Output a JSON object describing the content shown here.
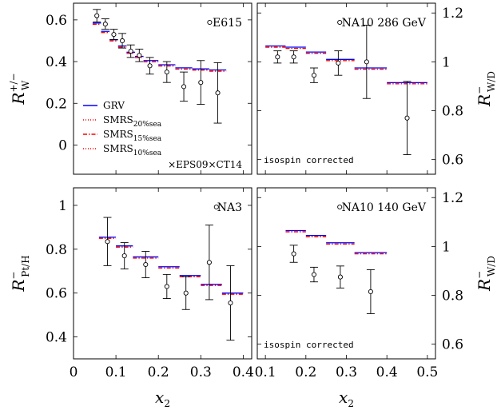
{
  "chart_data": [
    {
      "type": "scatter",
      "panel": "top-left",
      "ylabel": "R_W^{+/-}",
      "ylabel_main": "R",
      "ylabel_sub": "W",
      "ylabel_sup": "+/−",
      "ylabel_side": "left",
      "xlim": [
        0,
        0.42
      ],
      "ylim": [
        -0.14,
        0.68
      ],
      "xticks": [
        0,
        0.1,
        0.2,
        0.3,
        0.4
      ],
      "yticks": [
        0,
        0.2,
        0.4,
        0.6
      ],
      "ytick_labels": [
        "0",
        "0.2",
        "0.4",
        "0.6"
      ],
      "show_xtick_labels": false,
      "experiment": "E615",
      "experiment_position": "top-right",
      "legend": {
        "position": "lower-left",
        "entries": [
          {
            "name": "GRV",
            "sub": "",
            "style": "solid",
            "color": "#0000ff"
          },
          {
            "name": "SMRS",
            "sub": "20%sea",
            "style": "dotted",
            "color": "#ff0000"
          },
          {
            "name": "SMRS",
            "sub": "15%sea",
            "style": "dashed",
            "color": "#ff0000"
          },
          {
            "name": "SMRS",
            "sub": "10%sea",
            "style": "dotted",
            "color": "#ff0000"
          }
        ],
        "footer": "×EPS09×CT14"
      },
      "points": [
        {
          "x": 0.055,
          "y": 0.62,
          "err": 0.03
        },
        {
          "x": 0.075,
          "y": 0.58,
          "err": 0.025
        },
        {
          "x": 0.095,
          "y": 0.53,
          "err": 0.025
        },
        {
          "x": 0.115,
          "y": 0.5,
          "err": 0.035
        },
        {
          "x": 0.135,
          "y": 0.45,
          "err": 0.03
        },
        {
          "x": 0.155,
          "y": 0.43,
          "err": 0.03
        },
        {
          "x": 0.18,
          "y": 0.38,
          "err": 0.04
        },
        {
          "x": 0.22,
          "y": 0.35,
          "err": 0.05
        },
        {
          "x": 0.26,
          "y": 0.28,
          "err": 0.07
        },
        {
          "x": 0.3,
          "y": 0.3,
          "err": 0.105
        },
        {
          "x": 0.34,
          "y": 0.25,
          "err": 0.145
        }
      ],
      "bins": [
        {
          "x0": 0.045,
          "x1": 0.065,
          "y": 0.585
        },
        {
          "x0": 0.065,
          "x1": 0.085,
          "y": 0.545
        },
        {
          "x0": 0.085,
          "x1": 0.105,
          "y": 0.505
        },
        {
          "x0": 0.105,
          "x1": 0.125,
          "y": 0.475
        },
        {
          "x0": 0.125,
          "x1": 0.145,
          "y": 0.445
        },
        {
          "x0": 0.145,
          "x1": 0.165,
          "y": 0.425
        },
        {
          "x0": 0.165,
          "x1": 0.2,
          "y": 0.405
        },
        {
          "x0": 0.2,
          "x1": 0.24,
          "y": 0.385
        },
        {
          "x0": 0.24,
          "x1": 0.28,
          "y": 0.37
        },
        {
          "x0": 0.28,
          "x1": 0.32,
          "y": 0.365
        },
        {
          "x0": 0.32,
          "x1": 0.36,
          "y": 0.36
        }
      ]
    },
    {
      "type": "scatter",
      "panel": "top-right",
      "ylabel": "R_{W/D}^-",
      "ylabel_main": "R",
      "ylabel_sub": "W/D",
      "ylabel_sup": "−",
      "ylabel_side": "right",
      "xlim": [
        0.08,
        0.52
      ],
      "ylim": [
        0.54,
        1.24
      ],
      "xticks": [
        0.1,
        0.2,
        0.3,
        0.4,
        0.5
      ],
      "yticks": [
        0.6,
        0.8,
        1,
        1.2
      ],
      "ytick_labels": [
        "0.6",
        "0.8",
        "1",
        "1.2"
      ],
      "show_xtick_labels": false,
      "experiment": "NA10 286 GeV",
      "experiment_position": "top-right",
      "note": "isospin corrected",
      "points": [
        {
          "x": 0.13,
          "y": 1.02,
          "err": 0.025
        },
        {
          "x": 0.17,
          "y": 1.02,
          "err": 0.025
        },
        {
          "x": 0.22,
          "y": 0.945,
          "err": 0.03
        },
        {
          "x": 0.28,
          "y": 0.995,
          "err": 0.05
        },
        {
          "x": 0.35,
          "y": 1.0,
          "err": 0.15
        },
        {
          "x": 0.45,
          "y": 0.77,
          "err": 0.15
        }
      ],
      "bins": [
        {
          "x0": 0.1,
          "x1": 0.15,
          "y": 1.065
        },
        {
          "x0": 0.15,
          "x1": 0.2,
          "y": 1.06
        },
        {
          "x0": 0.2,
          "x1": 0.25,
          "y": 1.04
        },
        {
          "x0": 0.25,
          "x1": 0.32,
          "y": 1.01
        },
        {
          "x0": 0.32,
          "x1": 0.4,
          "y": 0.975
        },
        {
          "x0": 0.4,
          "x1": 0.5,
          "y": 0.915
        }
      ]
    },
    {
      "type": "scatter",
      "panel": "bottom-left",
      "ylabel": "R_{Pt/H}^-",
      "ylabel_main": "R",
      "ylabel_sub": "Pt/H",
      "ylabel_sup": "−",
      "ylabel_side": "left",
      "xlim": [
        0,
        0.42
      ],
      "ylim": [
        0.3,
        1.08
      ],
      "xticks": [
        0,
        0.1,
        0.2,
        0.3,
        0.4
      ],
      "xtick_labels": [
        "0",
        "0.1",
        "0.2",
        "0.3",
        "0.4"
      ],
      "yticks": [
        0.4,
        0.6,
        0.8,
        1
      ],
      "ytick_labels": [
        "0.4",
        "0.6",
        "0.8",
        "1"
      ],
      "show_xtick_labels": true,
      "xlabel_main": "x",
      "xlabel_sub": "2",
      "experiment": "NA3",
      "experiment_position": "top-right",
      "points": [
        {
          "x": 0.08,
          "y": 0.835,
          "err": 0.11
        },
        {
          "x": 0.12,
          "y": 0.77,
          "err": 0.06
        },
        {
          "x": 0.17,
          "y": 0.73,
          "err": 0.06
        },
        {
          "x": 0.22,
          "y": 0.63,
          "err": 0.055
        },
        {
          "x": 0.265,
          "y": 0.6,
          "err": 0.075
        },
        {
          "x": 0.32,
          "y": 0.74,
          "err": 0.17
        },
        {
          "x": 0.37,
          "y": 0.555,
          "err": 0.17
        }
      ],
      "bins": [
        {
          "x0": 0.06,
          "x1": 0.1,
          "y": 0.855
        },
        {
          "x0": 0.1,
          "x1": 0.14,
          "y": 0.815
        },
        {
          "x0": 0.14,
          "x1": 0.2,
          "y": 0.765
        },
        {
          "x0": 0.2,
          "x1": 0.25,
          "y": 0.72
        },
        {
          "x0": 0.25,
          "x1": 0.3,
          "y": 0.68
        },
        {
          "x0": 0.3,
          "x1": 0.35,
          "y": 0.64
        },
        {
          "x0": 0.35,
          "x1": 0.4,
          "y": 0.6
        }
      ]
    },
    {
      "type": "scatter",
      "panel": "bottom-right",
      "ylabel": "R_{W/D}^-",
      "ylabel_main": "R",
      "ylabel_sub": "W/D",
      "ylabel_sup": "−",
      "ylabel_side": "right",
      "xlim": [
        0.08,
        0.52
      ],
      "ylim": [
        0.54,
        1.24
      ],
      "xticks": [
        0.1,
        0.2,
        0.3,
        0.4,
        0.5
      ],
      "xtick_labels": [
        "0.1",
        "0.2",
        "0.3",
        "0.4",
        "0.5"
      ],
      "yticks": [
        0.6,
        0.8,
        1,
        1.2
      ],
      "ytick_labels": [
        "0.6",
        "0.8",
        "1",
        "1.2"
      ],
      "show_xtick_labels": true,
      "xlabel_main": "x",
      "xlabel_sub": "2",
      "experiment": "NA10 140 GeV",
      "experiment_position": "top-right",
      "note": "isospin corrected",
      "points": [
        {
          "x": 0.17,
          "y": 0.97,
          "err": 0.035
        },
        {
          "x": 0.22,
          "y": 0.885,
          "err": 0.03
        },
        {
          "x": 0.285,
          "y": 0.875,
          "err": 0.045
        },
        {
          "x": 0.36,
          "y": 0.815,
          "err": 0.09
        }
      ],
      "bins": [
        {
          "x0": 0.15,
          "x1": 0.2,
          "y": 1.065
        },
        {
          "x0": 0.2,
          "x1": 0.25,
          "y": 1.045
        },
        {
          "x0": 0.25,
          "x1": 0.32,
          "y": 1.015
        },
        {
          "x0": 0.32,
          "x1": 0.4,
          "y": 0.975
        }
      ]
    }
  ],
  "colors": {
    "grv": "#0000ff",
    "smrs": "#ff0000",
    "data": "#000000"
  }
}
